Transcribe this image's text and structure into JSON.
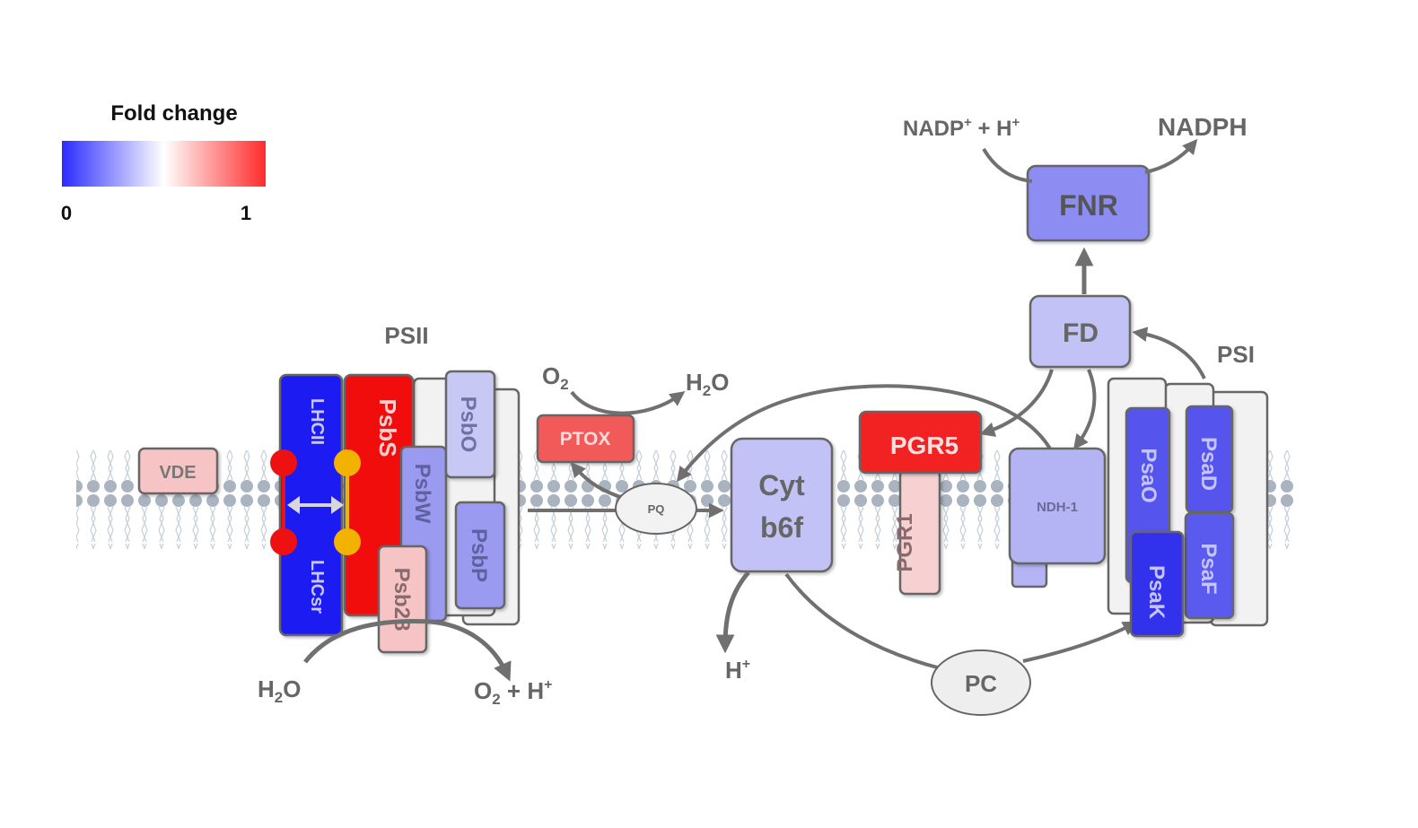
{
  "legend": {
    "title": "Fold change",
    "min_label": "0",
    "max_label": "1",
    "colors": {
      "low": "#2b2bff",
      "mid": "#ffffff",
      "high": "#ff2b2b"
    }
  },
  "complex_labels": {
    "psii": "PSII",
    "psi": "PSI"
  },
  "proteins": {
    "vde": "VDE",
    "lhcii": "LHCII",
    "lhcsr": "LHCsr",
    "psbs": "PsbS",
    "psbw": "PsbW",
    "psbo": "PsbO",
    "psbp": "PsbP",
    "psb28": "Psb28",
    "ptox": "PTOX",
    "pq": "PQ",
    "cyt_line1": "Cyt",
    "cyt_line2": "b6f",
    "pgr5": "PGR5",
    "pgr1": "PGR1",
    "ndh1": "NDH-1",
    "fd": "FD",
    "fnr": "FNR",
    "pc": "PC",
    "psao": "PsaO",
    "psad": "PsaD",
    "psaf": "PsaF",
    "psak": "PsaK"
  },
  "molecules": {
    "o2": "O",
    "o2_sub": "2",
    "h2o_top": "H",
    "h2o_top_sub": "2",
    "h2o_top_o": "O",
    "nadp": "NADP",
    "nadp_sup": "+",
    "nadp_plus_h": " + H",
    "nadp_h_sup": "+",
    "nadph": "NADPH",
    "h2o_bottom": "H",
    "h2o_bottom_sub": "2",
    "h2o_bottom_o": "O",
    "o2h": "O",
    "o2h_sub": "2",
    "o2h_plus": " + H",
    "o2h_sup": "+",
    "hplus": "H",
    "hplus_sup": "+"
  },
  "fold_colors": {
    "vde": "#f7c4c6",
    "lhcii": "#1f1ff2",
    "psbs": "#f21010",
    "psbw": "#9a9af0",
    "psbo": "#c8c8f5",
    "psbp": "#9a9af0",
    "psb28": "#f7c4c6",
    "ptox": "#f25a5a",
    "cyt": "#c2c2f7",
    "pgr5": "#f22020",
    "pgr1": "#f7d0d2",
    "ndh1": "#b4b4f5",
    "fd": "#c2c2f7",
    "fnr": "#8c8cf2",
    "psao": "#5555ee",
    "psad": "#5555ee",
    "psaf": "#5a5aee",
    "psak": "#3030ec",
    "pc": "#eeeeee",
    "pq": "#f2f2f2",
    "lutein": "#ee1111",
    "zeax": "#f2b300"
  }
}
